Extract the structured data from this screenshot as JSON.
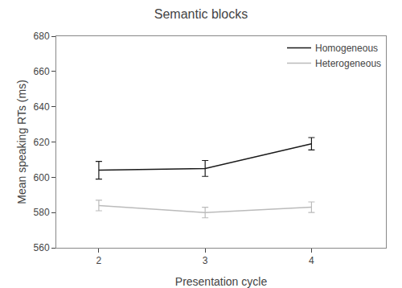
{
  "chart_data": {
    "type": "line",
    "title": "Semantic blocks",
    "xlabel": "Presentation cycle",
    "ylabel": "Mean speaking RTs (ms)",
    "x": [
      2,
      3,
      4
    ],
    "series": [
      {
        "name": "Homogeneous",
        "color": "#1a1a1a",
        "values": [
          604,
          605,
          619
        ],
        "errors": [
          5.0,
          4.5,
          3.5
        ]
      },
      {
        "name": "Heterogeneous",
        "color": "#bbbbbb",
        "values": [
          584,
          580,
          583
        ],
        "errors": [
          3.0,
          3.0,
          3.0
        ]
      }
    ],
    "xlim": [
      1.6,
      4.7
    ],
    "xticks": [
      2,
      3,
      4
    ],
    "ylim": [
      560,
      680
    ],
    "yticks": [
      560,
      580,
      600,
      620,
      640,
      660,
      680
    ],
    "grid": false,
    "legend": "upper right"
  }
}
